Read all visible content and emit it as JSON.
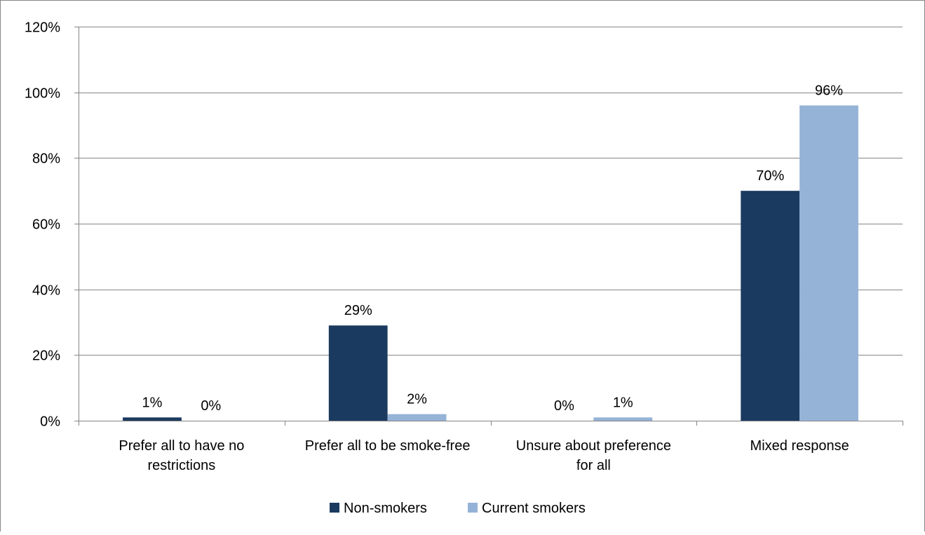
{
  "chart_data": {
    "type": "bar",
    "title": "",
    "xlabel": "",
    "ylabel": "",
    "ylim": [
      0,
      1.2
    ],
    "y_ticks": [
      "0%",
      "20%",
      "40%",
      "60%",
      "80%",
      "100%",
      "120%"
    ],
    "y_tick_values": [
      0,
      0.2,
      0.4,
      0.6,
      0.8,
      1.0,
      1.2
    ],
    "grid": true,
    "legend_position": "bottom",
    "categories": [
      [
        "Prefer all to have no",
        "restrictions"
      ],
      [
        "Prefer all to be smoke-free"
      ],
      [
        "Unsure about preference",
        "for all"
      ],
      [
        "Mixed response"
      ]
    ],
    "series": [
      {
        "name": "Non-smokers",
        "color": "#1b3a5f",
        "values": [
          0.01,
          0.29,
          0.0,
          0.7
        ],
        "labels": [
          "1%",
          "29%",
          "0%",
          "70%"
        ]
      },
      {
        "name": "Current smokers",
        "color": "#95b3d7",
        "values": [
          0.0,
          0.02,
          0.01,
          0.96
        ],
        "labels": [
          "0%",
          "2%",
          "1%",
          "96%"
        ]
      }
    ]
  }
}
